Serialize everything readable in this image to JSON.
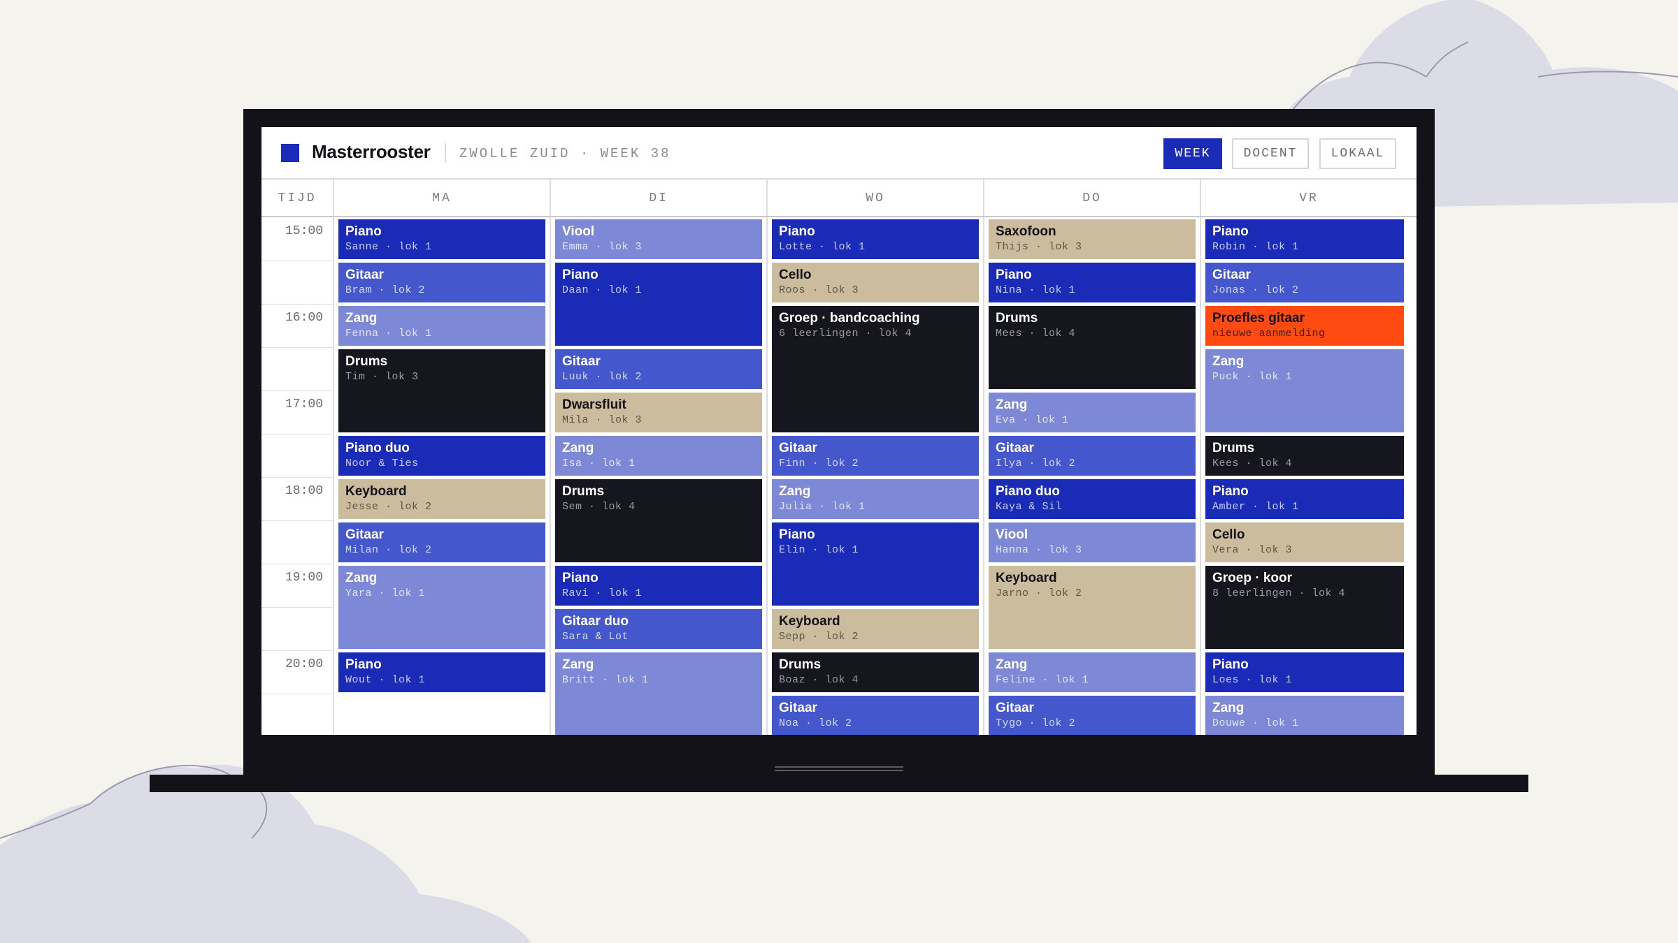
{
  "app": {
    "title": "Masterrooster",
    "subtitle": "ZWOLLE ZUID · WEEK 38",
    "views": [
      "WEEK",
      "DOCENT",
      "LOKAAL"
    ],
    "active_view": "WEEK"
  },
  "colors": {
    "blue": "#1a2bb8",
    "mid_blue": "#4457cc",
    "light_blue": "#7d88d6",
    "black": "#16161e",
    "tan": "#cbbc9e",
    "orange": "#ff4a12"
  },
  "columns": {
    "time_header": "TIJD",
    "days": [
      "MA",
      "DI",
      "WO",
      "DO",
      "VR"
    ]
  },
  "times": [
    "15:00",
    "16:00",
    "17:00",
    "18:00",
    "19:00",
    "20:00"
  ],
  "events": [
    {
      "day": 0,
      "start": 0,
      "span": 1,
      "color": "blue",
      "title": "Piano",
      "sub": "Sanne · lok 1"
    },
    {
      "day": 0,
      "start": 1,
      "span": 1,
      "color": "mid",
      "title": "Gitaar",
      "sub": "Bram · lok 2"
    },
    {
      "day": 0,
      "start": 2,
      "span": 1,
      "color": "light",
      "title": "Zang",
      "sub": "Fenna · lok 1"
    },
    {
      "day": 0,
      "start": 3,
      "span": 2,
      "color": "black",
      "title": "Drums",
      "sub": "Tim · lok 3"
    },
    {
      "day": 0,
      "start": 5,
      "span": 1,
      "color": "blue",
      "title": "Piano duo",
      "sub": "Noor & Ties"
    },
    {
      "day": 0,
      "start": 6,
      "span": 1,
      "color": "tan",
      "title": "Keyboard",
      "sub": "Jesse · lok 2"
    },
    {
      "day": 0,
      "start": 7,
      "span": 1,
      "color": "mid",
      "title": "Gitaar",
      "sub": "Milan · lok 2"
    },
    {
      "day": 0,
      "start": 8,
      "span": 2,
      "color": "light",
      "title": "Zang",
      "sub": "Yara · lok 1"
    },
    {
      "day": 0,
      "start": 10,
      "span": 1,
      "color": "blue",
      "title": "Piano",
      "sub": "Wout · lok 1"
    },
    {
      "day": 1,
      "start": 0,
      "span": 1,
      "color": "light",
      "title": "Viool",
      "sub": "Emma · lok 3"
    },
    {
      "day": 1,
      "start": 1,
      "span": 2,
      "color": "blue",
      "title": "Piano",
      "sub": "Daan · lok 1"
    },
    {
      "day": 1,
      "start": 3,
      "span": 1,
      "color": "mid",
      "title": "Gitaar",
      "sub": "Luuk · lok 2"
    },
    {
      "day": 1,
      "start": 4,
      "span": 1,
      "color": "tan",
      "title": "Dwarsfluit",
      "sub": "Mila · lok 3"
    },
    {
      "day": 1,
      "start": 5,
      "span": 1,
      "color": "light",
      "title": "Zang",
      "sub": "Isa · lok 1"
    },
    {
      "day": 1,
      "start": 6,
      "span": 2,
      "color": "black",
      "title": "Drums",
      "sub": "Sem · lok 4"
    },
    {
      "day": 1,
      "start": 8,
      "span": 1,
      "color": "blue",
      "title": "Piano",
      "sub": "Ravi · lok 1"
    },
    {
      "day": 1,
      "start": 9,
      "span": 1,
      "color": "mid",
      "title": "Gitaar duo",
      "sub": "Sara & Lot"
    },
    {
      "day": 1,
      "start": 10,
      "span": 2,
      "color": "light",
      "title": "Zang",
      "sub": "Britt · lok 1"
    },
    {
      "day": 2,
      "start": 0,
      "span": 1,
      "color": "blue",
      "title": "Piano",
      "sub": "Lotte · lok 1"
    },
    {
      "day": 2,
      "start": 1,
      "span": 1,
      "color": "tan",
      "title": "Cello",
      "sub": "Roos · lok 3"
    },
    {
      "day": 2,
      "start": 2,
      "span": 3,
      "color": "black",
      "title": "Groep · bandcoaching",
      "sub": "6 leerlingen · lok 4"
    },
    {
      "day": 2,
      "start": 5,
      "span": 1,
      "color": "mid",
      "title": "Gitaar",
      "sub": "Finn · lok 2"
    },
    {
      "day": 2,
      "start": 6,
      "span": 1,
      "color": "light",
      "title": "Zang",
      "sub": "Julia · lok 1"
    },
    {
      "day": 2,
      "start": 7,
      "span": 2,
      "color": "blue",
      "title": "Piano",
      "sub": "Elin · lok 1"
    },
    {
      "day": 2,
      "start": 9,
      "span": 1,
      "color": "tan",
      "title": "Keyboard",
      "sub": "Sepp · lok 2"
    },
    {
      "day": 2,
      "start": 10,
      "span": 1,
      "color": "black",
      "title": "Drums",
      "sub": "Boaz · lok 4"
    },
    {
      "day": 2,
      "start": 11,
      "span": 1,
      "color": "mid",
      "title": "Gitaar",
      "sub": "Noa · lok 2"
    },
    {
      "day": 3,
      "start": 0,
      "span": 1,
      "color": "tan",
      "title": "Saxofoon",
      "sub": "Thijs · lok 3"
    },
    {
      "day": 3,
      "start": 1,
      "span": 1,
      "color": "blue",
      "title": "Piano",
      "sub": "Nina · lok 1"
    },
    {
      "day": 3,
      "start": 2,
      "span": 2,
      "color": "black",
      "title": "Drums",
      "sub": "Mees · lok 4"
    },
    {
      "day": 3,
      "start": 4,
      "span": 1,
      "color": "light",
      "title": "Zang",
      "sub": "Eva · lok 1"
    },
    {
      "day": 3,
      "start": 5,
      "span": 1,
      "color": "mid",
      "title": "Gitaar",
      "sub": "Ilya · lok 2"
    },
    {
      "day": 3,
      "start": 6,
      "span": 1,
      "color": "blue",
      "title": "Piano duo",
      "sub": "Kaya & Sil"
    },
    {
      "day": 3,
      "start": 7,
      "span": 1,
      "color": "light",
      "title": "Viool",
      "sub": "Hanna · lok 3"
    },
    {
      "day": 3,
      "start": 8,
      "span": 2,
      "color": "tan",
      "title": "Keyboard",
      "sub": "Jarno · lok 2"
    },
    {
      "day": 3,
      "start": 10,
      "span": 1,
      "color": "light",
      "title": "Zang",
      "sub": "Feline · lok 1"
    },
    {
      "day": 3,
      "start": 11,
      "span": 1,
      "color": "mid",
      "title": "Gitaar",
      "sub": "Tygo · lok 2"
    },
    {
      "day": 4,
      "start": 0,
      "span": 1,
      "color": "blue",
      "title": "Piano",
      "sub": "Robin · lok 1"
    },
    {
      "day": 4,
      "start": 1,
      "span": 1,
      "color": "mid",
      "title": "Gitaar",
      "sub": "Jonas · lok 2"
    },
    {
      "day": 4,
      "start": 2,
      "span": 1,
      "color": "orange",
      "title": "Proefles gitaar",
      "sub": "nieuwe aanmelding"
    },
    {
      "day": 4,
      "start": 3,
      "span": 2,
      "color": "light",
      "title": "Zang",
      "sub": "Puck · lok 1"
    },
    {
      "day": 4,
      "start": 5,
      "span": 1,
      "color": "black",
      "title": "Drums",
      "sub": "Kees · lok 4"
    },
    {
      "day": 4,
      "start": 6,
      "span": 1,
      "color": "blue",
      "title": "Piano",
      "sub": "Amber · lok 1"
    },
    {
      "day": 4,
      "start": 7,
      "span": 1,
      "color": "tan",
      "title": "Cello",
      "sub": "Vera · lok 3"
    },
    {
      "day": 4,
      "start": 8,
      "span": 2,
      "color": "black",
      "title": "Groep · koor",
      "sub": "8 leerlingen · lok 4"
    },
    {
      "day": 4,
      "start": 10,
      "span": 1,
      "color": "blue",
      "title": "Piano",
      "sub": "Loes · lok 1"
    },
    {
      "day": 4,
      "start": 11,
      "span": 1,
      "color": "light",
      "title": "Zang",
      "sub": "Douwe · lok 1"
    }
  ]
}
